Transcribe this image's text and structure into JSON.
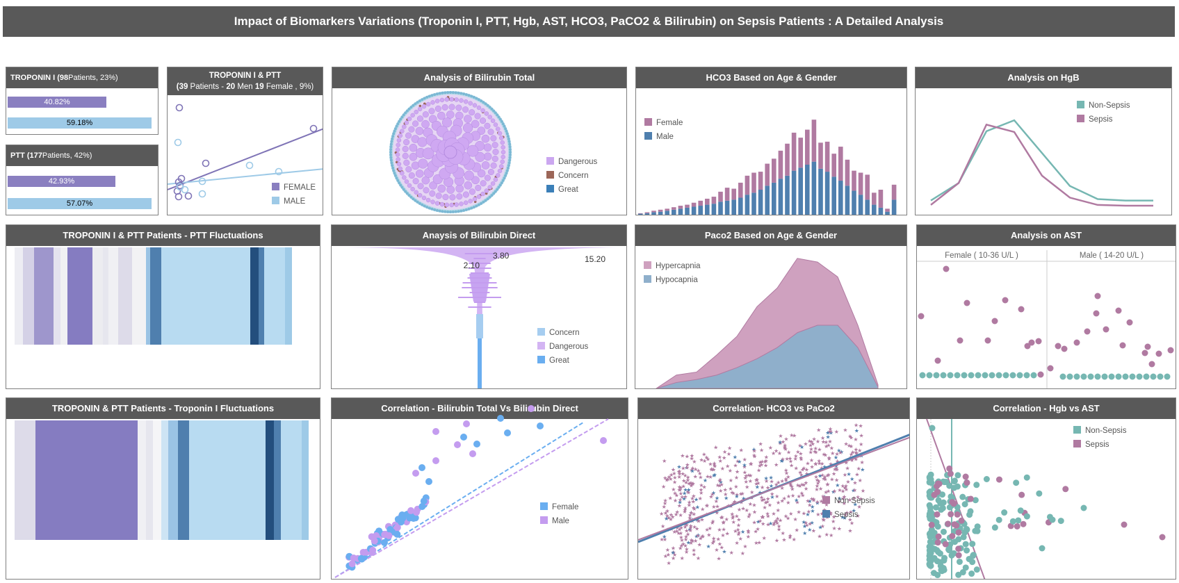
{
  "title": "Impact of Biomarkers Variations (Troponin I, PTT, Hgb, AST, HCO3, PaCO2 & Bilirubin) on Sepsis Patients : A Detailed Analysis",
  "colors": {
    "header_bg": "#595959",
    "female": "#8a7fc0",
    "male": "#9ecae7",
    "sepsis": "#b07aa1",
    "non_sepsis": "#76b7b2",
    "bili_dangerous": "#cba7f0",
    "bili_concern": "#9c6658",
    "bili_great": "#3b7fb8"
  },
  "troponin": {
    "label": "TROPONIN I",
    "count": "98",
    "rest": " Patients, 23%)",
    "female_pct": "40.82%",
    "male_pct": "59.18%"
  },
  "ptt": {
    "label": "PTT",
    "count": "177",
    "rest": " Patients, 42%)",
    "female_pct": "42.93%",
    "male_pct": "57.07%"
  },
  "panels": {
    "trop_ptt_scatter": {
      "title_line1": "TROPONIN I & PTT",
      "title_line2_pre": "(",
      "title_a": "39",
      "title_line2_mid": " Patients - ",
      "title_b": "20",
      "title_line2_mid2": " Men ",
      "title_c": "19",
      "title_line2_end": " Female , 9%)"
    },
    "bili_total": "Analysis of Bilirubin Total",
    "hco3": "HCO3 Based on Age & Gender",
    "hgb": "Analysis on HgB",
    "ptt_fluct": "TROPONIN I & PTT Patients - PTT Fluctuations",
    "bili_direct": "Anaysis of Bilirubin Direct",
    "paco2": "Paco2 Based on Age & Gender",
    "ast": "Analysis on AST",
    "trop_fluct": "TROPONIN & PTT Patients - Troponin I Fluctuations",
    "corr_bili": "Correlation  - Bilirubin Total Vs Bilirubin Direct",
    "corr_hco3": "Correlation- HCO3 vs PaCo2",
    "corr_hgb": "Correlation - Hgb vs AST"
  },
  "chart_data": [
    {
      "id": "trop_ptt_scatter",
      "type": "scatter",
      "legend": [
        "FEMALE",
        "MALE"
      ],
      "series": [
        {
          "name": "FEMALE",
          "points": [
            [
              17,
              55
            ],
            [
              205,
              86
            ],
            [
              55,
              33
            ],
            [
              16,
              24
            ],
            [
              16,
              16
            ],
            [
              16,
              10
            ],
            [
              30,
              20
            ],
            [
              18,
              22
            ],
            [
              20,
              28
            ]
          ]
        },
        {
          "name": "MALE",
          "points": [
            [
              15,
              95
            ],
            [
              118,
              46
            ],
            [
              160,
              36
            ],
            [
              50,
              34
            ],
            [
              50,
              20
            ],
            [
              25,
              25
            ],
            [
              18,
              14
            ]
          ]
        }
      ]
    },
    {
      "id": "bili_total",
      "type": "packed-bubble",
      "legend": [
        "Dangerous",
        "Concern",
        "Great"
      ]
    },
    {
      "id": "hco3",
      "type": "bar",
      "legend": [
        "Female",
        "Male"
      ],
      "series": [
        {
          "name": "Male",
          "values": [
            2,
            3,
            5,
            6,
            8,
            10,
            12,
            14,
            16,
            18,
            20,
            22,
            26,
            28,
            30,
            34,
            40,
            44,
            50,
            58,
            64,
            72,
            78,
            88,
            94,
            100,
            106,
            92,
            86,
            76,
            68,
            58,
            48,
            40,
            30,
            20,
            14,
            6,
            30
          ]
        },
        {
          "name": "Female",
          "values": [
            1,
            2,
            3,
            4,
            4,
            5,
            6,
            6,
            8,
            10,
            12,
            14,
            20,
            26,
            22,
            30,
            38,
            40,
            36,
            44,
            48,
            56,
            64,
            76,
            60,
            70,
            84,
            52,
            60,
            46,
            68,
            52,
            40,
            44,
            50,
            24,
            36,
            6,
            30
          ]
        }
      ]
    },
    {
      "id": "hgb",
      "type": "line",
      "legend": [
        "Non-Sepsis",
        "Sepsis"
      ],
      "series": [
        {
          "name": "Non-Sepsis",
          "values": [
            8,
            32,
            103,
            118,
            73,
            28,
            10,
            8,
            8
          ]
        },
        {
          "name": "Sepsis",
          "values": [
            2,
            32,
            112,
            102,
            42,
            12,
            2,
            1,
            1
          ]
        }
      ]
    },
    {
      "id": "ptt_fluct",
      "type": "heatmap"
    },
    {
      "id": "bili_direct",
      "type": "area",
      "labels": [
        "3.80",
        "2.10",
        "15.20"
      ],
      "legend": [
        "Concern",
        "Dangerous",
        "Great"
      ]
    },
    {
      "id": "paco2",
      "type": "area",
      "legend": [
        "Hypercapnia",
        "Hypocapnia"
      ],
      "series": [
        {
          "name": "Hypercapnia",
          "values": [
            0,
            18,
            22,
            45,
            70,
            110,
            135,
            175,
            170,
            150,
            85,
            5
          ]
        },
        {
          "name": "Hypocapnia",
          "values": [
            0,
            8,
            12,
            18,
            28,
            40,
            55,
            75,
            85,
            85,
            55,
            2
          ]
        }
      ]
    },
    {
      "id": "ast",
      "type": "scatter",
      "facets": [
        "Female ( 10-36 U/L )",
        "Male ( 14-20 U/L )"
      ]
    },
    {
      "id": "trop_fluct",
      "type": "heatmap"
    },
    {
      "id": "corr_bili",
      "type": "scatter",
      "legend": [
        "Female",
        "Male"
      ]
    },
    {
      "id": "corr_hco3",
      "type": "scatter",
      "legend": [
        "Non Sepsis",
        "Sepsis"
      ]
    },
    {
      "id": "corr_hgb",
      "type": "scatter",
      "legend": [
        "Non-Sepsis",
        "Sepsis"
      ]
    }
  ]
}
